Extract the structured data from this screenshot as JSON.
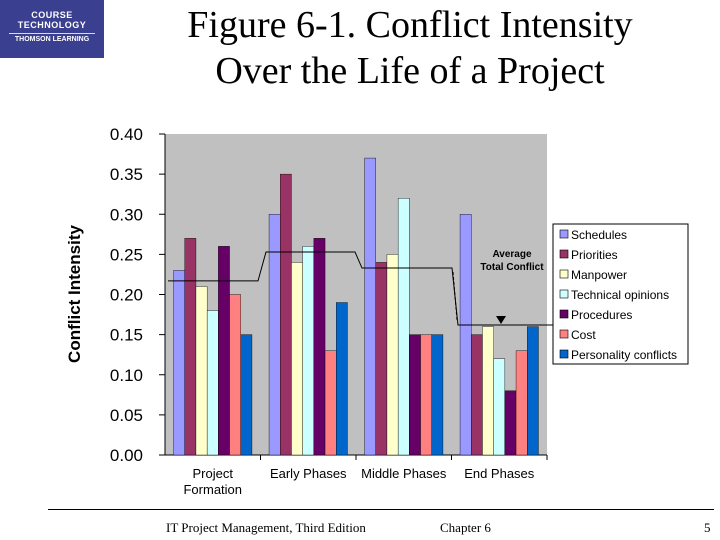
{
  "logo": {
    "line1": "COURSE",
    "line2": "TECHNOLOGY",
    "line3": "THOMSON LEARNING"
  },
  "title_line1": "Figure 6-1. Conflict Intensity",
  "title_line2": "Over the Life of a Project",
  "footer": {
    "book": "IT Project Management, Third Edition",
    "chapter": "Chapter 6",
    "page": "5"
  },
  "colors": {
    "Schedules": "#9999ff",
    "Priorities": "#993366",
    "Manpower": "#ffffcc",
    "Technical opinions": "#ccffff",
    "Procedures": "#660066",
    "Cost": "#ff8080",
    "Personality conflicts": "#0066cc",
    "plot_bg": "#c0c0c0"
  },
  "chart_data": {
    "type": "bar",
    "title": "Figure 6-1. Conflict Intensity Over the Life of a Project",
    "ylabel": "Conflict Intensity",
    "xlabel": "",
    "ylim": [
      0,
      0.4
    ],
    "yticks": [
      "0.00",
      "0.05",
      "0.10",
      "0.15",
      "0.20",
      "0.25",
      "0.30",
      "0.35",
      "0.40"
    ],
    "categories": [
      "Project Formation",
      "Early Phases",
      "Middle Phases",
      "End Phases"
    ],
    "category_lines": [
      [
        "Project",
        "Formation"
      ],
      [
        "Early Phases"
      ],
      [
        "Middle Phases"
      ],
      [
        "End Phases"
      ]
    ],
    "series": [
      {
        "name": "Schedules",
        "values": [
          0.23,
          0.3,
          0.37,
          0.3
        ]
      },
      {
        "name": "Priorities",
        "values": [
          0.27,
          0.35,
          0.24,
          0.15
        ]
      },
      {
        "name": "Manpower",
        "values": [
          0.21,
          0.24,
          0.25,
          0.16
        ]
      },
      {
        "name": "Technical opinions",
        "values": [
          0.18,
          0.26,
          0.32,
          0.12
        ]
      },
      {
        "name": "Procedures",
        "values": [
          0.26,
          0.27,
          0.15,
          0.08
        ]
      },
      {
        "name": "Cost",
        "values": [
          0.2,
          0.13,
          0.15,
          0.13
        ]
      },
      {
        "name": "Personality conflicts",
        "values": [
          0.15,
          0.19,
          0.15,
          0.16
        ]
      }
    ],
    "average_total_conflict": {
      "label_line1": "Average",
      "label_line2": "Total Conflict",
      "values": [
        0.217,
        0.253,
        0.233,
        0.162
      ]
    },
    "legend_position": "right"
  }
}
